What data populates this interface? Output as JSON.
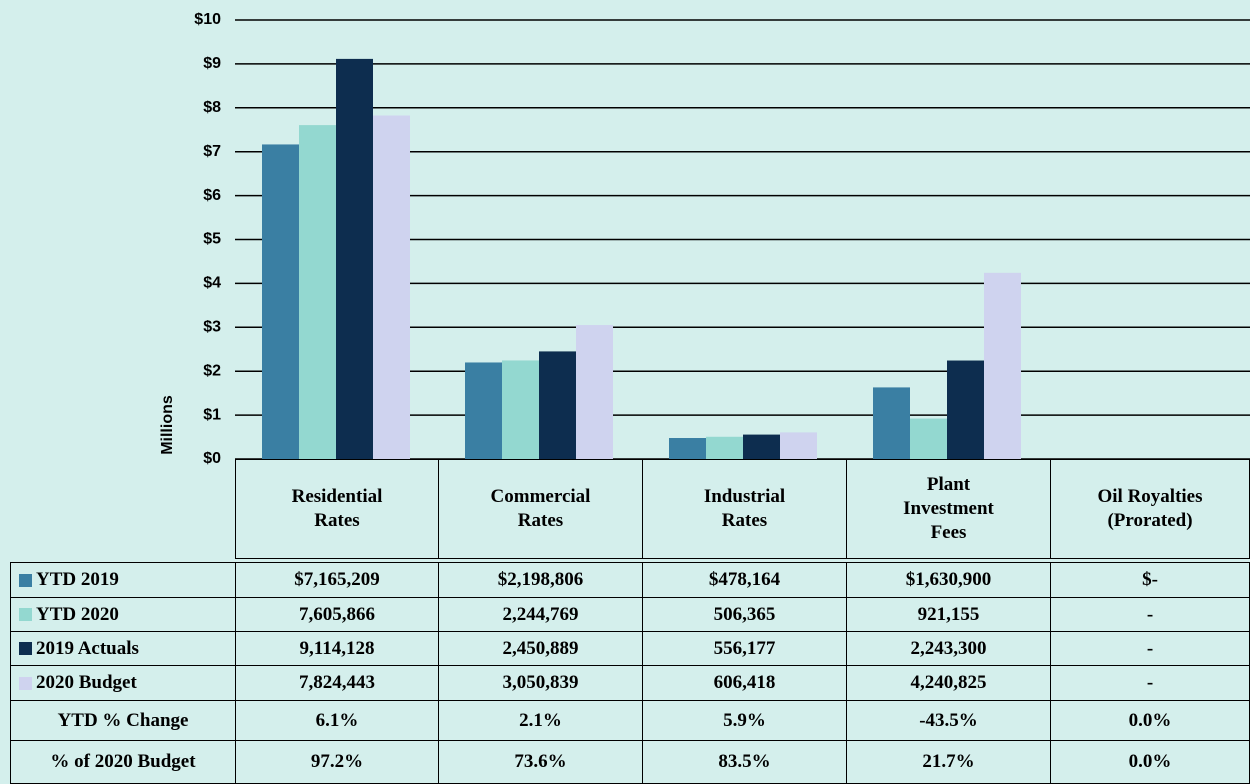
{
  "chart_data": {
    "type": "bar",
    "y_axis_label": "Millions",
    "categories": [
      "Residential Rates",
      "Commercial Rates",
      "Industrial Rates",
      "Plant Investment Fees",
      "Oil Royalties (Prorated)"
    ],
    "series": [
      {
        "name": "YTD 2019",
        "color": "#3a7fa3",
        "values": [
          7.165209,
          2.198806,
          0.478164,
          1.6309,
          0
        ],
        "value_labels": [
          "$7,165,209",
          "$2,198,806",
          "$478,164",
          "$1,630,900",
          "$-"
        ]
      },
      {
        "name": "YTD 2020",
        "color": "#93d8d0",
        "values": [
          7.605866,
          2.244769,
          0.506365,
          0.921155,
          0
        ],
        "value_labels": [
          "7,605,866",
          "2,244,769",
          "506,365",
          "921,155",
          "-"
        ]
      },
      {
        "name": "2019 Actuals",
        "color": "#0d2d4f",
        "values": [
          9.114128,
          2.450889,
          0.556177,
          2.2433,
          0
        ],
        "value_labels": [
          "9,114,128",
          "2,450,889",
          "556,177",
          "2,243,300",
          "-"
        ]
      },
      {
        "name": "2020 Budget",
        "color": "#cfd3ef",
        "values": [
          7.824443,
          3.050839,
          0.606418,
          4.240825,
          0
        ],
        "value_labels": [
          "7,824,443",
          "3,050,839",
          "606,418",
          "4,240,825",
          "-"
        ]
      }
    ],
    "table_rows": [
      {
        "name": "YTD % Change",
        "cells": [
          "6.1%",
          "2.1%",
          "5.9%",
          "-43.5%",
          "0.0%"
        ]
      },
      {
        "name": "% of 2020 Budget",
        "cells": [
          "97.2%",
          "73.6%",
          "83.5%",
          "21.7%",
          "0.0%"
        ]
      }
    ],
    "ylim": [
      0,
      10
    ],
    "yticks": [
      {
        "value": 0,
        "label": "$0"
      },
      {
        "value": 1,
        "label": "$1"
      },
      {
        "value": 2,
        "label": "$2"
      },
      {
        "value": 3,
        "label": "$3"
      },
      {
        "value": 4,
        "label": "$4"
      },
      {
        "value": 5,
        "label": "$5"
      },
      {
        "value": 6,
        "label": "$6"
      },
      {
        "value": 7,
        "label": "$7"
      },
      {
        "value": 8,
        "label": "$8"
      },
      {
        "value": 9,
        "label": "$9"
      },
      {
        "value": 10,
        "label": "$10"
      }
    ],
    "grid": true
  }
}
